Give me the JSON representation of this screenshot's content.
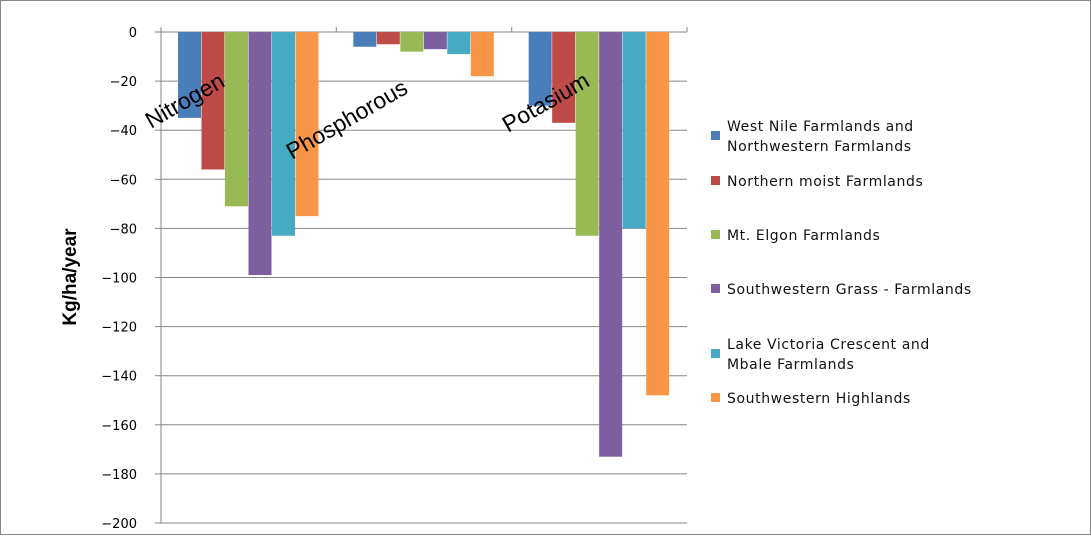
{
  "chart_data": {
    "type": "bar",
    "title": "",
    "xlabel": "",
    "ylabel": "Kg/ha/year",
    "ylim": [
      -200,
      0
    ],
    "yticks": [
      0,
      -20,
      -40,
      -60,
      -80,
      -100,
      -120,
      -140,
      -160,
      -180,
      -200
    ],
    "grid": true,
    "legend_position": "right",
    "categories": [
      "Nitrogen",
      "Phosphorous",
      "Potasium"
    ],
    "series": [
      {
        "name": [
          "West  Nile Farmlands and",
          "Northwestern Farmlands"
        ],
        "color": "#4a7ebb",
        "values": [
          -35,
          -6,
          -30
        ]
      },
      {
        "name": [
          "Northern moist Farmlands"
        ],
        "color": "#be4b48",
        "values": [
          -56,
          -5,
          -37
        ]
      },
      {
        "name": [
          "Mt. Elgon Farmlands"
        ],
        "color": "#98b954",
        "values": [
          -71,
          -8,
          -83
        ]
      },
      {
        "name": [
          "Southwestern Grass - Farmlands"
        ],
        "color": "#7d60a0",
        "values": [
          -99,
          -7,
          -173
        ]
      },
      {
        "name": [
          "Lake Victoria Crescent and",
          "Mbale Farmlands"
        ],
        "color": "#46aac5",
        "values": [
          -83,
          -9,
          -80
        ]
      },
      {
        "name": [
          "Southwestern Highlands"
        ],
        "color": "#f79646",
        "values": [
          -75,
          -18,
          -148
        ]
      }
    ]
  }
}
